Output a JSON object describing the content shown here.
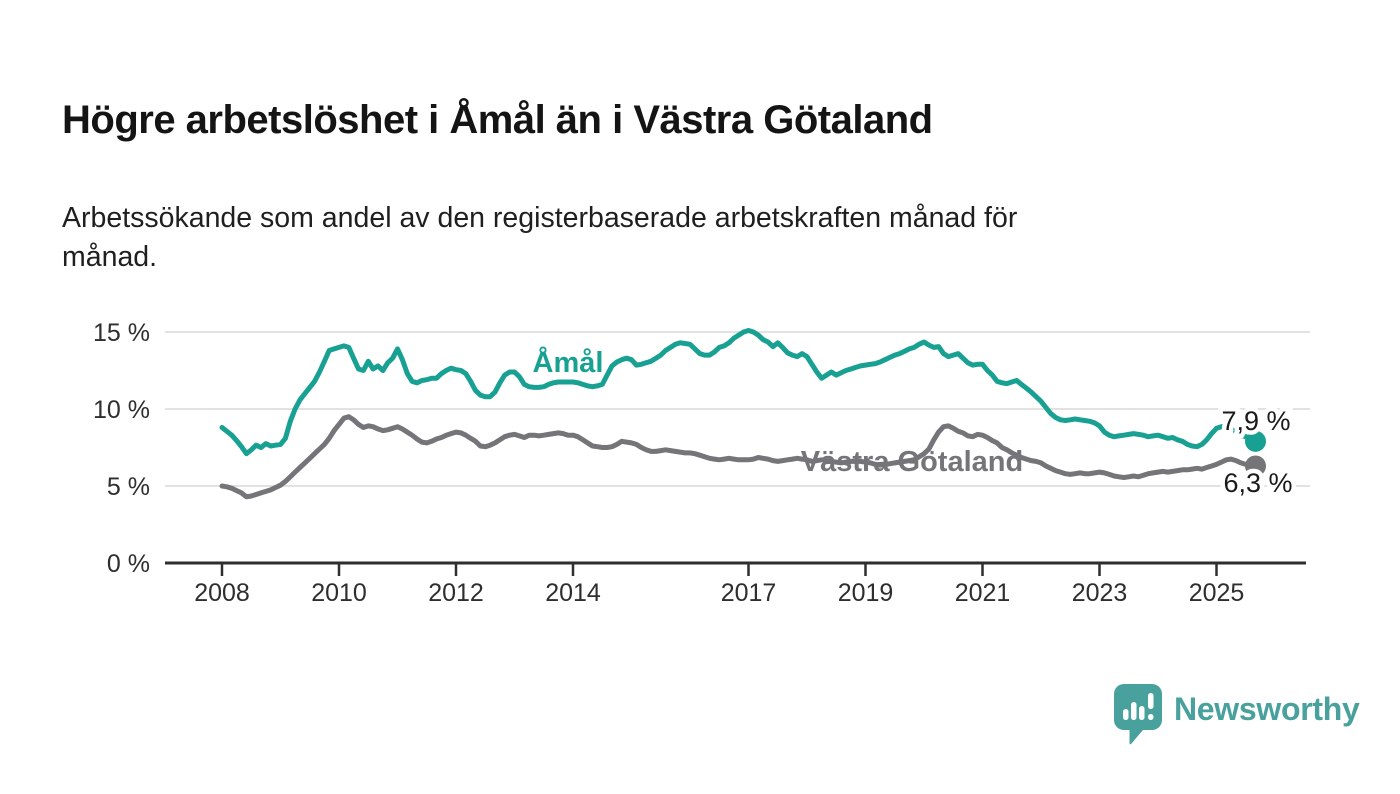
{
  "header": {
    "title": "Högre arbetslöshet i Åmål än i Västra Götaland",
    "subtitle": "Arbetssökande som andel av den registerbaserade arbetskraften månad för månad."
  },
  "chart_data": {
    "type": "line",
    "unit": "%",
    "grid": "horizontal",
    "legend_position": "inline-labels",
    "x_start_year": 2008,
    "x_interval_months": 1,
    "x_end_label_period": "Sep 2025",
    "y_range": [
      0,
      16.4
    ],
    "y_ticks": [
      {
        "value": 0,
        "label": "0 %"
      },
      {
        "value": 5,
        "label": "5 %"
      },
      {
        "value": 10,
        "label": "10 %"
      },
      {
        "value": 15,
        "label": "15 %"
      }
    ],
    "x_ticks": [
      {
        "year": 2008,
        "label": "2008"
      },
      {
        "year": 2010,
        "label": "2010"
      },
      {
        "year": 2012,
        "label": "2012"
      },
      {
        "year": 2014,
        "label": "2014"
      },
      {
        "year": 2017,
        "label": "2017"
      },
      {
        "year": 2019,
        "label": "2019"
      },
      {
        "year": 2021,
        "label": "2021"
      },
      {
        "year": 2023,
        "label": "2023"
      },
      {
        "year": 2025,
        "label": "2025"
      }
    ],
    "colors": {
      "axis": "#2e2e2e",
      "grid": "#d9d9d9",
      "tick_text": "#2e2e2e",
      "end_label_text": "#1a1a1a"
    },
    "series": [
      {
        "name": "Åmål",
        "color": "#18a193",
        "end_label": "7,9 %",
        "end_value": 7.9,
        "values": [
          8.8,
          8.55,
          8.3,
          7.95,
          7.55,
          7.1,
          7.35,
          7.65,
          7.5,
          7.75,
          7.6,
          7.65,
          7.7,
          8.1,
          9.2,
          10,
          10.6,
          11,
          11.4,
          11.8,
          12.4,
          13.1,
          13.8,
          13.9,
          14,
          14.1,
          14,
          13.3,
          12.6,
          12.5,
          13.1,
          12.6,
          12.8,
          12.5,
          13,
          13.3,
          13.9,
          13.2,
          12.3,
          11.8,
          11.7,
          11.85,
          11.9,
          12,
          12,
          12.3,
          12.5,
          12.65,
          12.55,
          12.5,
          12.3,
          11.8,
          11.2,
          10.9,
          10.8,
          10.8,
          11.1,
          11.7,
          12.2,
          12.4,
          12.4,
          12.1,
          11.6,
          11.45,
          11.4,
          11.4,
          11.45,
          11.6,
          11.7,
          11.75,
          11.75,
          11.75,
          11.75,
          11.7,
          11.6,
          11.5,
          11.45,
          11.5,
          11.6,
          12.2,
          12.8,
          13.05,
          13.2,
          13.3,
          13.2,
          12.85,
          12.9,
          13,
          13.1,
          13.3,
          13.5,
          13.8,
          14,
          14.2,
          14.3,
          14.25,
          14.2,
          13.9,
          13.6,
          13.5,
          13.5,
          13.7,
          14,
          14.1,
          14.3,
          14.6,
          14.8,
          15,
          15.1,
          15,
          14.8,
          14.5,
          14.35,
          14.05,
          14.3,
          14,
          13.65,
          13.5,
          13.4,
          13.6,
          13.4,
          12.9,
          12.4,
          12,
          12.2,
          12.4,
          12.2,
          12.35,
          12.5,
          12.6,
          12.7,
          12.8,
          12.85,
          12.9,
          12.95,
          13.05,
          13.2,
          13.35,
          13.5,
          13.6,
          13.75,
          13.9,
          14,
          14.2,
          14.35,
          14.15,
          14,
          14.05,
          13.6,
          13.4,
          13.5,
          13.6,
          13.3,
          13,
          12.85,
          12.9,
          12.9,
          12.5,
          12.2,
          11.8,
          11.7,
          11.65,
          11.75,
          11.85,
          11.6,
          11.35,
          11.1,
          10.8,
          10.5,
          10.1,
          9.7,
          9.45,
          9.3,
          9.25,
          9.3,
          9.35,
          9.3,
          9.25,
          9.2,
          9.1,
          8.9,
          8.5,
          8.3,
          8.2,
          8.25,
          8.3,
          8.35,
          8.4,
          8.35,
          8.3,
          8.2,
          8.25,
          8.3,
          8.2,
          8.1,
          8.15,
          8,
          7.9,
          7.7,
          7.6,
          7.55,
          7.7,
          8,
          8.4,
          8.75,
          8.85,
          8.9,
          8.7,
          8.5,
          8.3,
          8.2,
          8,
          7.9
        ]
      },
      {
        "name": "Västra Götaland",
        "color": "#757479",
        "end_label": "6,3 %",
        "end_value": 6.3,
        "values": [
          5,
          4.95,
          4.85,
          4.7,
          4.55,
          4.3,
          4.35,
          4.45,
          4.55,
          4.65,
          4.75,
          4.9,
          5.05,
          5.3,
          5.6,
          5.9,
          6.2,
          6.5,
          6.8,
          7.1,
          7.4,
          7.7,
          8.1,
          8.6,
          9,
          9.4,
          9.5,
          9.3,
          9,
          8.8,
          8.9,
          8.85,
          8.7,
          8.6,
          8.65,
          8.75,
          8.85,
          8.7,
          8.5,
          8.3,
          8.05,
          7.85,
          7.8,
          7.9,
          8.05,
          8.15,
          8.3,
          8.4,
          8.5,
          8.45,
          8.3,
          8.1,
          7.9,
          7.6,
          7.55,
          7.65,
          7.8,
          8,
          8.2,
          8.3,
          8.35,
          8.25,
          8.15,
          8.3,
          8.3,
          8.25,
          8.3,
          8.35,
          8.4,
          8.45,
          8.4,
          8.3,
          8.3,
          8.2,
          8,
          7.8,
          7.6,
          7.55,
          7.5,
          7.5,
          7.55,
          7.7,
          7.9,
          7.85,
          7.8,
          7.7,
          7.5,
          7.35,
          7.25,
          7.25,
          7.3,
          7.35,
          7.3,
          7.25,
          7.2,
          7.15,
          7.15,
          7.1,
          7,
          6.9,
          6.8,
          6.75,
          6.7,
          6.75,
          6.8,
          6.75,
          6.7,
          6.7,
          6.7,
          6.75,
          6.85,
          6.8,
          6.75,
          6.65,
          6.6,
          6.65,
          6.7,
          6.75,
          6.8,
          6.75,
          6.7,
          6.6,
          6.65,
          6.7,
          6.65,
          6.6,
          6.55,
          6.5,
          6.55,
          6.6,
          6.6,
          6.6,
          6.55,
          6.5,
          6.4,
          6.35,
          6.4,
          6.45,
          6.5,
          6.55,
          6.6,
          6.65,
          6.7,
          6.9,
          7.1,
          7.4,
          8,
          8.5,
          8.85,
          8.9,
          8.75,
          8.55,
          8.45,
          8.25,
          8.2,
          8.35,
          8.3,
          8.15,
          7.95,
          7.8,
          7.5,
          7.35,
          7.15,
          7,
          6.85,
          6.75,
          6.65,
          6.6,
          6.5,
          6.3,
          6.15,
          6,
          5.9,
          5.8,
          5.75,
          5.8,
          5.85,
          5.8,
          5.8,
          5.85,
          5.9,
          5.85,
          5.75,
          5.65,
          5.6,
          5.55,
          5.6,
          5.65,
          5.6,
          5.7,
          5.8,
          5.85,
          5.9,
          5.95,
          5.9,
          5.95,
          6,
          6.05,
          6.05,
          6.1,
          6.15,
          6.1,
          6.2,
          6.3,
          6.4,
          6.55,
          6.7,
          6.75,
          6.65,
          6.5,
          6.4,
          6.3,
          6.3
        ]
      }
    ]
  },
  "footer": {
    "brand": "Newsworthy",
    "brand_color": "#48a19c",
    "logo_icon": "bar-chart-speech-bubble-icon"
  }
}
